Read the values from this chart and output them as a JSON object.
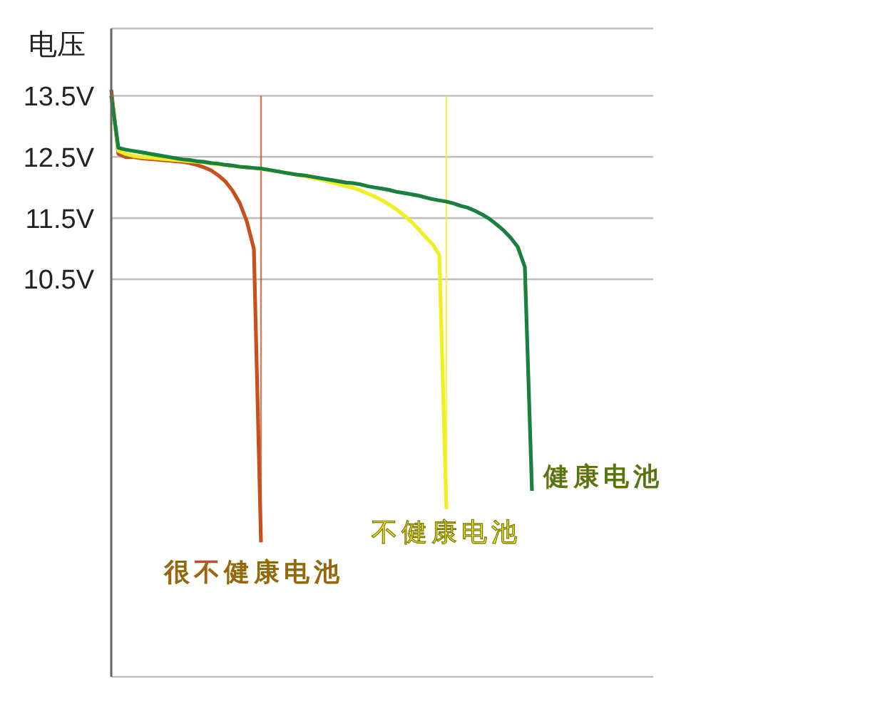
{
  "chart_data": {
    "type": "line",
    "ylabel": "电压",
    "categories": [
      null,
      null,
      null,
      null,
      null,
      null,
      null,
      null,
      null,
      null,
      null,
      null,
      null,
      null,
      null,
      null,
      null,
      null,
      null,
      null,
      null,
      null,
      null,
      null,
      null,
      null,
      null,
      null,
      null,
      null,
      null,
      null,
      null,
      null,
      null,
      null,
      null,
      null,
      null,
      null,
      null,
      null,
      null,
      null,
      null,
      null,
      null,
      null,
      null,
      null,
      null,
      null,
      null,
      null,
      null,
      null,
      null,
      null,
      null,
      null,
      null,
      null,
      null,
      null,
      null,
      null,
      null,
      null,
      null,
      null,
      null,
      null,
      null,
      null,
      null,
      null,
      null
    ],
    "series": [
      {
        "name": "很不健康电池",
        "color": "#c8501e",
        "values": [
          13.6,
          12.55,
          12.5,
          12.5,
          12.48,
          12.47,
          12.46,
          12.45,
          12.44,
          12.43,
          12.42,
          12.4,
          12.37,
          12.33,
          12.28,
          12.2,
          12.1,
          11.95,
          11.75,
          11.45,
          11.0,
          6.2,
          null,
          null,
          null,
          null,
          null,
          null,
          null,
          null,
          null,
          null,
          null,
          null,
          null,
          null,
          null,
          null,
          null,
          null,
          null,
          null,
          null,
          null,
          null,
          null,
          null,
          null,
          null,
          null,
          null,
          null,
          null,
          null,
          null,
          null,
          null,
          null,
          null,
          null,
          null,
          null,
          null,
          null,
          null,
          null,
          null,
          null,
          null,
          null,
          null,
          null,
          null,
          null,
          null,
          null,
          null
        ]
      },
      {
        "name": "不健康电池",
        "color": "#f0ef22",
        "values": [
          13.5,
          12.6,
          12.55,
          12.52,
          12.5,
          12.49,
          12.48,
          12.47,
          12.46,
          12.45,
          12.44,
          12.43,
          12.42,
          12.41,
          12.39,
          12.38,
          12.37,
          12.35,
          12.34,
          12.33,
          12.32,
          12.3,
          12.29,
          12.27,
          12.25,
          12.23,
          12.21,
          12.19,
          12.16,
          12.14,
          12.11,
          12.08,
          12.05,
          12.02,
          11.99,
          11.95,
          11.9,
          11.85,
          11.79,
          11.72,
          11.64,
          11.55,
          11.45,
          11.33,
          11.2,
          11.08,
          10.9,
          6.74,
          null,
          null,
          null,
          null,
          null,
          null,
          null,
          null,
          null,
          null,
          null,
          null,
          null,
          null,
          null,
          null,
          null,
          null,
          null,
          null,
          null,
          null,
          null,
          null,
          null,
          null,
          null,
          null,
          null
        ]
      },
      {
        "name": "健康电池",
        "color": "#1a8040",
        "values": [
          13.5,
          12.65,
          12.62,
          12.6,
          12.58,
          12.56,
          12.54,
          12.52,
          12.5,
          12.48,
          12.46,
          12.45,
          12.43,
          12.42,
          12.4,
          12.39,
          12.37,
          12.36,
          12.34,
          12.33,
          12.32,
          12.31,
          12.29,
          12.27,
          12.25,
          12.23,
          12.21,
          12.2,
          12.18,
          12.16,
          12.14,
          12.12,
          12.1,
          12.08,
          12.07,
          12.05,
          12.02,
          12.0,
          11.98,
          11.96,
          11.93,
          11.91,
          11.89,
          11.87,
          11.84,
          11.81,
          11.79,
          11.77,
          11.74,
          11.7,
          11.67,
          11.62,
          11.56,
          11.49,
          11.4,
          11.3,
          11.18,
          11.03,
          10.7,
          7.04,
          null,
          null,
          null,
          null,
          null,
          null,
          null,
          null,
          null,
          null,
          null,
          null,
          null,
          null,
          null,
          null,
          null
        ]
      }
    ],
    "ylim": [
      4,
      14.6
    ],
    "yticks": [
      {
        "value": 13.5,
        "label": "13.5V"
      },
      {
        "value": 12.5,
        "label": "12.5V"
      },
      {
        "value": 11.5,
        "label": "11.5V"
      },
      {
        "value": 10.5,
        "label": "10.5V"
      }
    ],
    "tick_labels": "y",
    "grid": "y",
    "legend": false,
    "marker": "none",
    "line_style": "solid"
  }
}
